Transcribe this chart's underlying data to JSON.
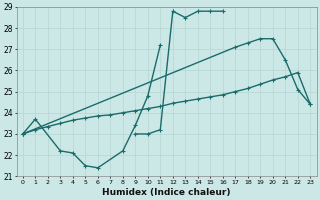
{
  "xlabel": "Humidex (Indice chaleur)",
  "x_values": [
    0,
    1,
    2,
    3,
    4,
    5,
    6,
    7,
    8,
    9,
    10,
    11,
    12,
    13,
    14,
    15,
    16,
    17,
    18,
    19,
    20,
    21,
    22,
    23
  ],
  "line1_x": [
    0,
    1,
    3,
    4,
    5,
    6,
    8,
    9,
    10,
    11
  ],
  "line1_y": [
    23.0,
    23.7,
    22.2,
    22.1,
    21.5,
    21.4,
    22.2,
    23.4,
    24.8,
    27.2
  ],
  "line2_x": [
    9,
    10,
    11,
    12,
    13,
    14,
    15,
    16
  ],
  "line2_y": [
    23.0,
    23.0,
    23.2,
    28.8,
    28.5,
    28.8,
    28.8,
    28.8
  ],
  "line3_x": [
    0,
    17,
    18,
    19,
    20,
    21,
    22,
    23
  ],
  "line3_y": [
    23.0,
    27.1,
    27.3,
    27.5,
    27.5,
    26.5,
    25.1,
    24.4
  ],
  "line4_x": [
    0,
    1,
    2,
    3,
    4,
    5,
    6,
    7,
    8,
    9,
    10,
    11,
    12,
    13,
    14,
    15,
    16,
    17,
    18,
    19,
    20,
    21,
    22,
    23
  ],
  "line4_y": [
    23.0,
    23.2,
    23.35,
    23.5,
    23.65,
    23.75,
    23.85,
    23.9,
    24.0,
    24.1,
    24.2,
    24.3,
    24.45,
    24.55,
    24.65,
    24.75,
    24.85,
    25.0,
    25.15,
    25.35,
    25.55,
    25.7,
    25.9,
    24.4
  ],
  "ylim": [
    21,
    29
  ],
  "xlim": [
    -0.5,
    23.5
  ],
  "bg_color": "#cce8e6",
  "grid_color": "#b0d4d2",
  "line_color": "#1a6b6b",
  "markersize": 3.5,
  "linewidth": 1.0
}
